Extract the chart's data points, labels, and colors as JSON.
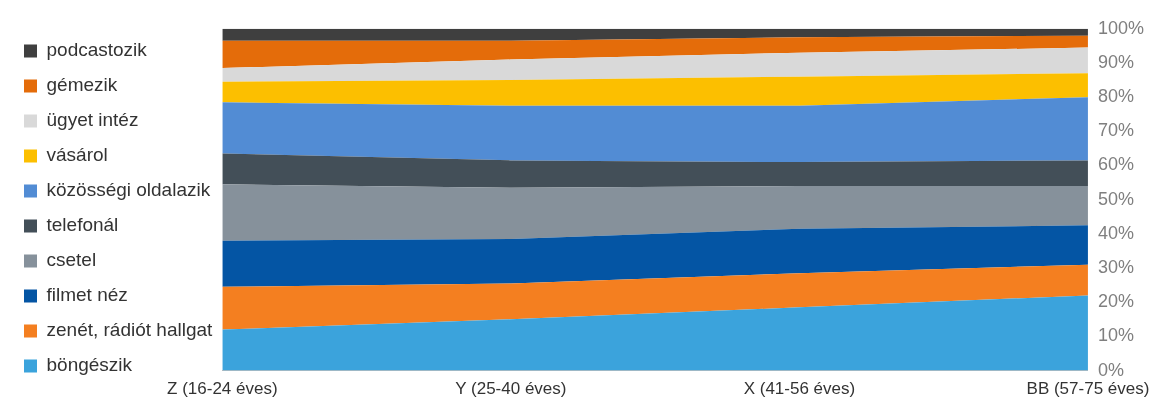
{
  "chart_data": {
    "type": "area",
    "stacked": true,
    "categories": [
      "Z (16-24 éves)",
      "Y (25-40 éves)",
      "X (41-56 éves)",
      "BB (57-75 éves)"
    ],
    "series": [
      {
        "name": "böngészik",
        "color": "#3ba3dc",
        "values": [
          12,
          15,
          18.5,
          22
        ]
      },
      {
        "name": "zenét, rádiót hallgat",
        "color": "#f47f20",
        "values": [
          12.5,
          10.5,
          10,
          9
        ]
      },
      {
        "name": "filmet néz",
        "color": "#0455a4",
        "values": [
          13.5,
          13,
          13,
          11.5
        ]
      },
      {
        "name": "csetel",
        "color": "#86919b",
        "values": [
          16.5,
          15,
          12.5,
          11.5
        ]
      },
      {
        "name": "telefonál",
        "color": "#434f58",
        "values": [
          9,
          8,
          7,
          7.5
        ]
      },
      {
        "name": "közösségi oldalazik",
        "color": "#528cd4",
        "values": [
          15,
          16,
          16.5,
          18.5
        ]
      },
      {
        "name": "vásárol",
        "color": "#fcbf00",
        "values": [
          6,
          7.5,
          8.5,
          7
        ]
      },
      {
        "name": "ügyet intéz",
        "color": "#d9d9d9",
        "values": [
          4,
          6,
          7,
          7.5
        ]
      },
      {
        "name": "gémezik",
        "color": "#e46c0a",
        "values": [
          8,
          5.5,
          4.5,
          3.5
        ]
      },
      {
        "name": "podcastozik",
        "color": "#3f3f3f",
        "values": [
          3.5,
          3.5,
          2.5,
          2
        ]
      }
    ],
    "ylim": [
      0,
      100
    ],
    "yticks": [
      {
        "value": 0,
        "label": "0%"
      },
      {
        "value": 10,
        "label": "10%"
      },
      {
        "value": 20,
        "label": "20%"
      },
      {
        "value": 30,
        "label": "30%"
      },
      {
        "value": 40,
        "label": "40%"
      },
      {
        "value": 50,
        "label": "50%"
      },
      {
        "value": 60,
        "label": "60%"
      },
      {
        "value": 70,
        "label": "70%"
      },
      {
        "value": 80,
        "label": "80%"
      },
      {
        "value": 90,
        "label": "90%"
      },
      {
        "value": 100,
        "label": "100%"
      }
    ],
    "grid": false,
    "legend": "left"
  }
}
